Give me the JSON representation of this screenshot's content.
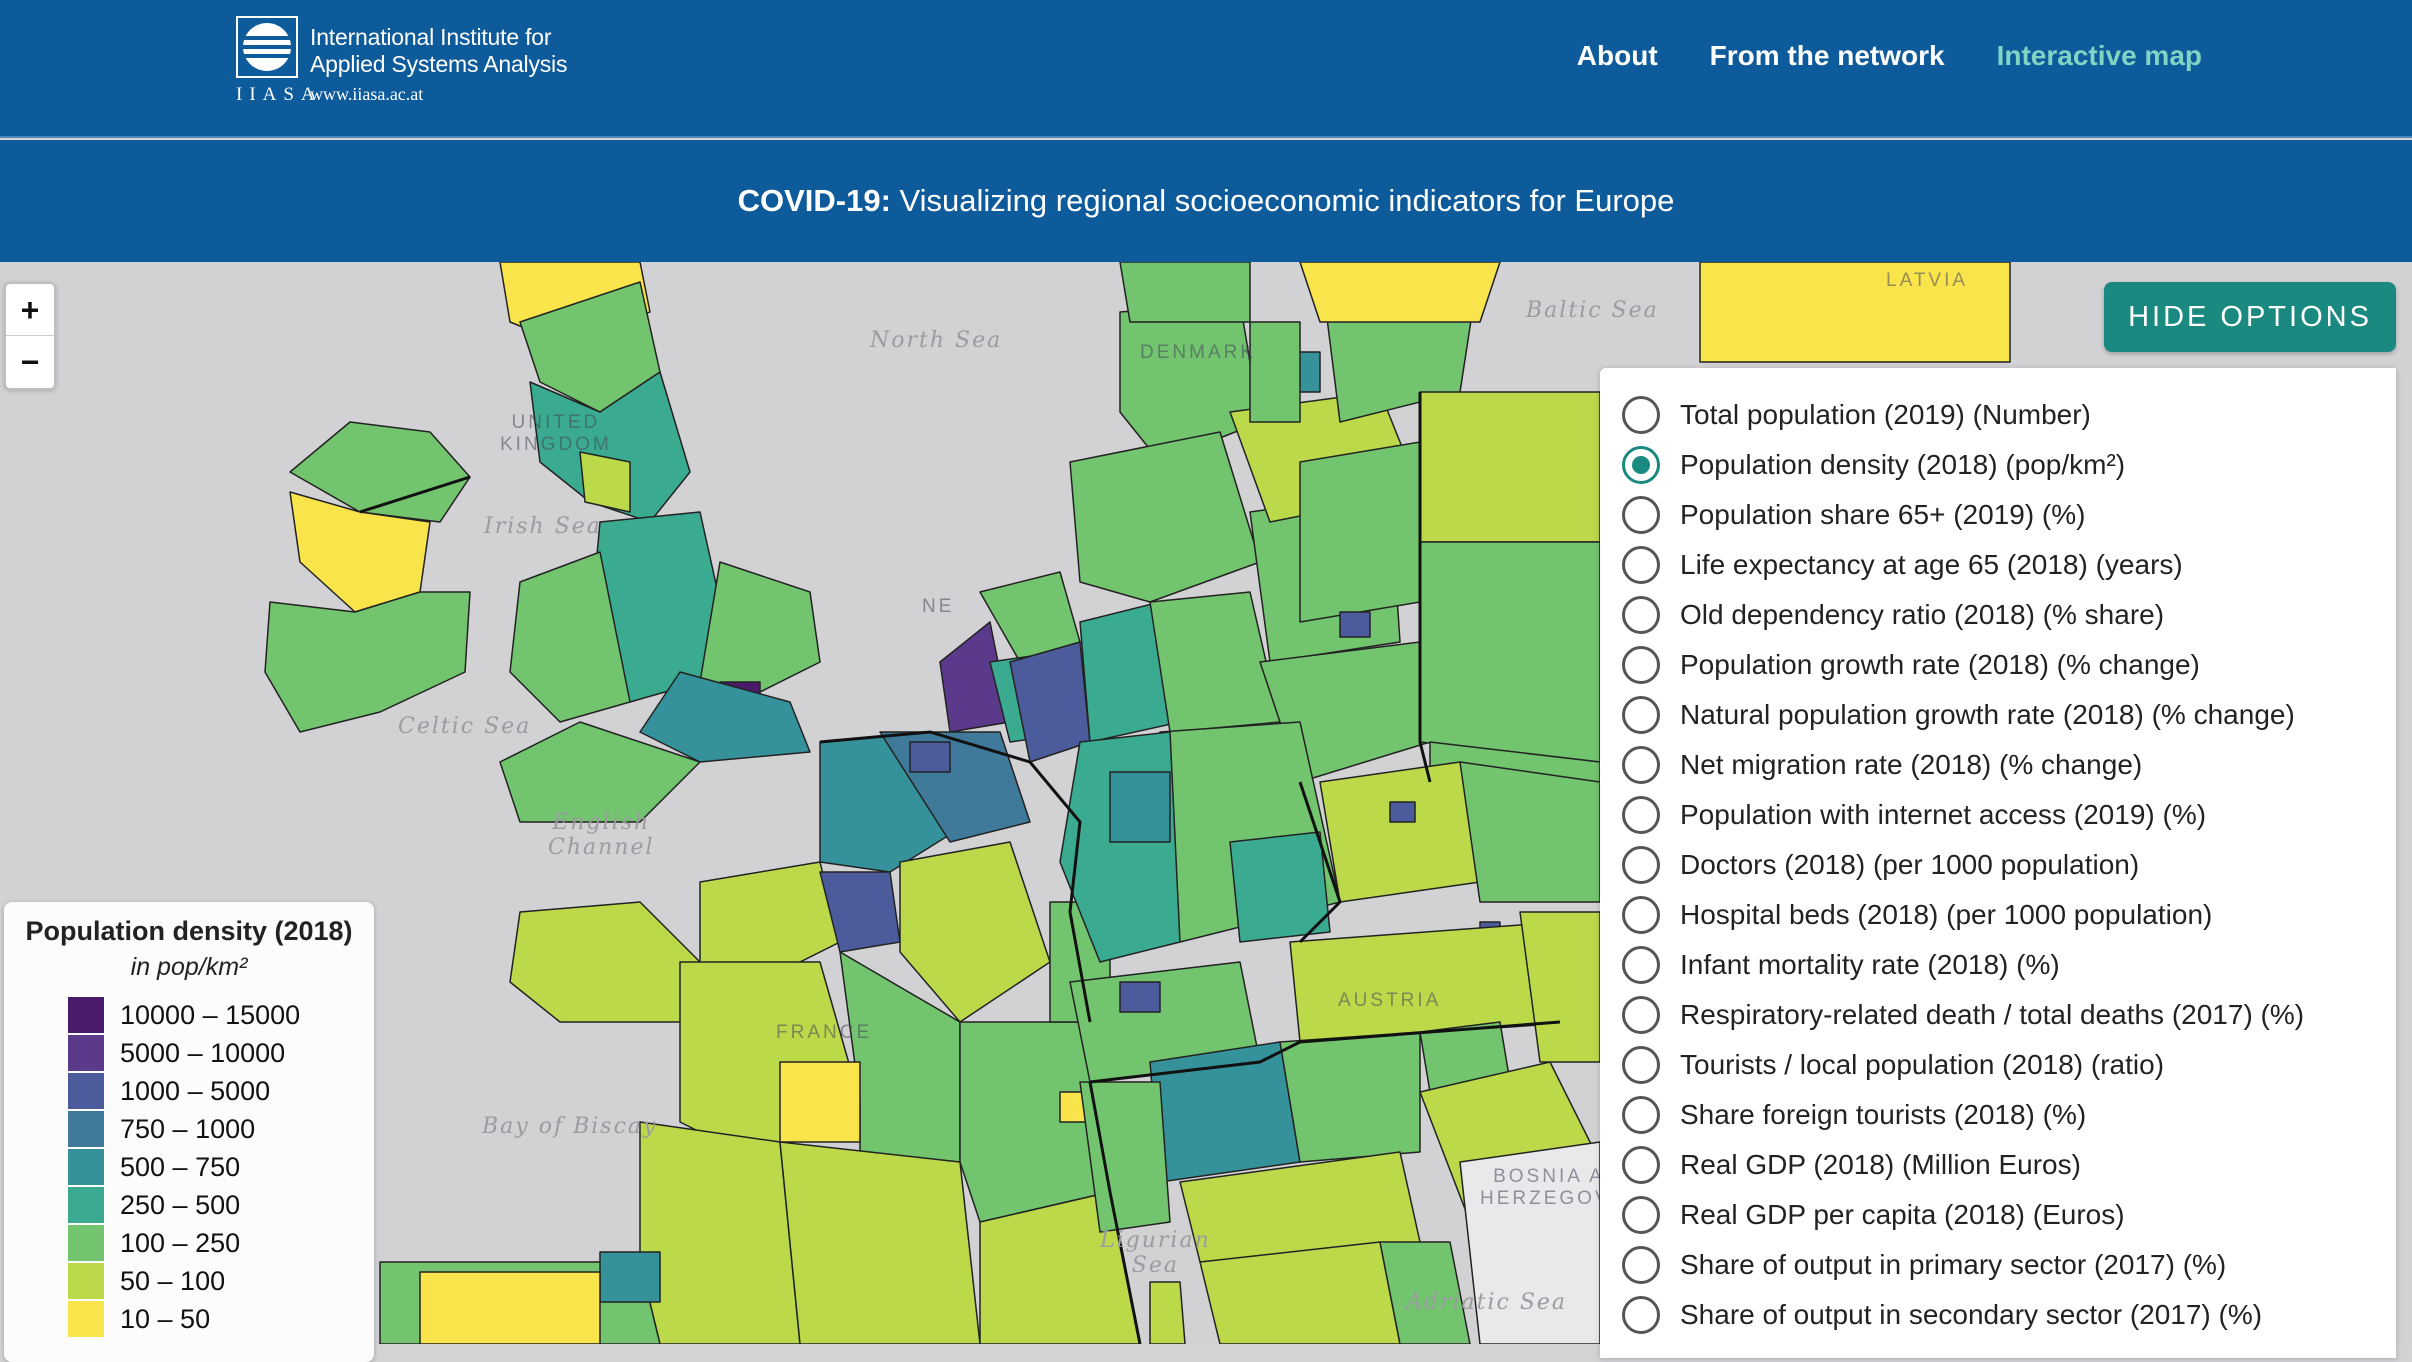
{
  "header": {
    "logo": {
      "name": "International Institute for\nApplied Systems Analysis",
      "acronym": "IIASA",
      "url": "www.iiasa.ac.at"
    },
    "nav": [
      {
        "label": "About",
        "active": false
      },
      {
        "label": "From the network",
        "active": false
      },
      {
        "label": "Interactive map",
        "active": true
      }
    ],
    "subtitle_bold": "COVID-19:",
    "subtitle_rest": " Visualizing regional socioeconomic indicators for Europe"
  },
  "map": {
    "zoom_in": "+",
    "zoom_out": "−",
    "sea_labels": [
      "North Sea",
      "Baltic Sea",
      "Irish Sea",
      "Celtic Sea",
      "English\nChannel",
      "Bay of Biscay",
      "Ligurian\nSea",
      "Adriatic Sea"
    ],
    "country_labels": [
      "LATVIA",
      "DENMARK",
      "UNITED\nKINGDOM",
      "NE",
      "FRANCE",
      "AUSTRIA",
      "BOSNIA AND\nHERZEGOVINA"
    ]
  },
  "legend": {
    "title": "Population density (2018)",
    "unit": "in pop/km²",
    "items": [
      {
        "label": "10000 – 15000",
        "color": "#4a1a6b"
      },
      {
        "label": "5000 – 10000",
        "color": "#5b3a8c"
      },
      {
        "label": "1000 – 5000",
        "color": "#4b5b9b"
      },
      {
        "label": "750 – 1000",
        "color": "#3f7a9a"
      },
      {
        "label": "500 – 750",
        "color": "#35929a"
      },
      {
        "label": "250 – 500",
        "color": "#3aab91"
      },
      {
        "label": "100 – 250",
        "color": "#72c56e"
      },
      {
        "label": "50 – 100",
        "color": "#bcd94a"
      },
      {
        "label": "10 – 50",
        "color": "#f9e44c"
      }
    ]
  },
  "options": {
    "hide_label": "HIDE OPTIONS",
    "items": [
      {
        "label": "Total population (2019) (Number)",
        "checked": false
      },
      {
        "label": "Population density (2018) (pop/km²)",
        "checked": true
      },
      {
        "label": "Population share 65+ (2019) (%)",
        "checked": false
      },
      {
        "label": "Life expectancy at age 65 (2018) (years)",
        "checked": false
      },
      {
        "label": "Old dependency ratio (2018) (% share)",
        "checked": false
      },
      {
        "label": "Population growth rate (2018) (% change)",
        "checked": false
      },
      {
        "label": "Natural population growth rate (2018) (% change)",
        "checked": false
      },
      {
        "label": "Net migration rate (2018) (% change)",
        "checked": false
      },
      {
        "label": "Population with internet access (2019) (%)",
        "checked": false
      },
      {
        "label": "Doctors (2018) (per 1000 population)",
        "checked": false
      },
      {
        "label": "Hospital beds (2018) (per 1000 population)",
        "checked": false
      },
      {
        "label": "Infant mortality rate (2018) (%)",
        "checked": false
      },
      {
        "label": "Respiratory-related death / total deaths (2017) (%)",
        "checked": false
      },
      {
        "label": "Tourists / local population (2018) (ratio)",
        "checked": false
      },
      {
        "label": "Share foreign tourists (2018) (%)",
        "checked": false
      },
      {
        "label": "Real GDP (2018) (Million Euros)",
        "checked": false
      },
      {
        "label": "Real GDP per capita (2018) (Euros)",
        "checked": false
      },
      {
        "label": "Share of output in primary sector (2017) (%)",
        "checked": false
      },
      {
        "label": "Share of output in secondary sector (2017) (%)",
        "checked": false
      }
    ]
  }
}
